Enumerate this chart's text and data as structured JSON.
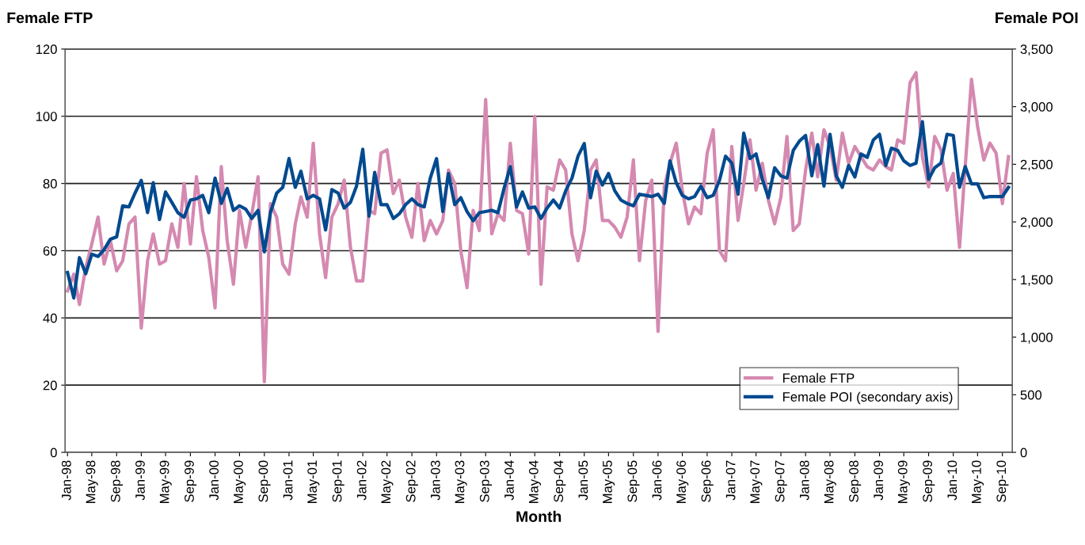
{
  "chart_data": {
    "type": "line",
    "xlabel": "Month",
    "ylabel": "Female FTP",
    "y2label": "Female POI",
    "x": [
      "1998-01",
      "1998-02",
      "1998-03",
      "1998-04",
      "1998-05",
      "1998-06",
      "1998-07",
      "1998-08",
      "1998-09",
      "1998-10",
      "1998-11",
      "1998-12",
      "1999-01",
      "1999-02",
      "1999-03",
      "1999-04",
      "1999-05",
      "1999-06",
      "1999-07",
      "1999-08",
      "1999-09",
      "1999-10",
      "1999-11",
      "1999-12",
      "2000-01",
      "2000-02",
      "2000-03",
      "2000-04",
      "2000-05",
      "2000-06",
      "2000-07",
      "2000-08",
      "2000-09",
      "2000-10",
      "2000-11",
      "2000-12",
      "2001-01",
      "2001-02",
      "2001-03",
      "2001-04",
      "2001-05",
      "2001-06",
      "2001-07",
      "2001-08",
      "2001-09",
      "2001-10",
      "2001-11",
      "2001-12",
      "2002-01",
      "2002-02",
      "2002-03",
      "2002-04",
      "2002-05",
      "2002-06",
      "2002-07",
      "2002-08",
      "2002-09",
      "2002-10",
      "2002-11",
      "2002-12",
      "2003-01",
      "2003-02",
      "2003-03",
      "2003-04",
      "2003-05",
      "2003-06",
      "2003-07",
      "2003-08",
      "2003-09",
      "2003-10",
      "2003-11",
      "2003-12",
      "2004-01",
      "2004-02",
      "2004-03",
      "2004-04",
      "2004-05",
      "2004-06",
      "2004-07",
      "2004-08",
      "2004-09",
      "2004-10",
      "2004-11",
      "2004-12",
      "2005-01",
      "2005-02",
      "2005-03",
      "2005-04",
      "2005-05",
      "2005-06",
      "2005-07",
      "2005-08",
      "2005-09",
      "2005-10",
      "2005-11",
      "2005-12",
      "2006-01",
      "2006-02",
      "2006-03",
      "2006-04",
      "2006-05",
      "2006-06",
      "2006-07",
      "2006-08",
      "2006-09",
      "2006-10",
      "2006-11",
      "2006-12",
      "2007-01",
      "2007-02",
      "2007-03",
      "2007-04",
      "2007-05",
      "2007-06",
      "2007-07",
      "2007-08",
      "2007-09",
      "2007-10",
      "2007-11",
      "2007-12",
      "2008-01",
      "2008-02",
      "2008-03",
      "2008-04",
      "2008-05",
      "2008-06",
      "2008-07",
      "2008-08",
      "2008-09",
      "2008-10",
      "2008-11",
      "2008-12",
      "2009-01",
      "2009-02",
      "2009-03",
      "2009-04",
      "2009-05",
      "2009-06",
      "2009-07",
      "2009-08",
      "2009-09",
      "2009-10",
      "2009-11",
      "2009-12",
      "2010-01",
      "2010-02",
      "2010-03",
      "2010-04",
      "2010-05",
      "2010-06",
      "2010-07",
      "2010-08",
      "2010-09",
      "2010-10"
    ],
    "xlim": [
      "1997-12-20",
      "2010-10-20"
    ],
    "xticks": [
      {
        "value": "1998-01",
        "label": "Jan-98"
      },
      {
        "value": "1998-05",
        "label": "May-98"
      },
      {
        "value": "1998-09",
        "label": "Sep-98"
      },
      {
        "value": "1999-01",
        "label": "Jan-99"
      },
      {
        "value": "1999-05",
        "label": "May-99"
      },
      {
        "value": "1999-09",
        "label": "Sep-99"
      },
      {
        "value": "2000-01",
        "label": "Jan-00"
      },
      {
        "value": "2000-05",
        "label": "May-00"
      },
      {
        "value": "2000-09",
        "label": "Sep-00"
      },
      {
        "value": "2001-01",
        "label": "Jan-01"
      },
      {
        "value": "2001-05",
        "label": "May-01"
      },
      {
        "value": "2001-09",
        "label": "Sep-01"
      },
      {
        "value": "2002-01",
        "label": "Jan-02"
      },
      {
        "value": "2002-05",
        "label": "May-02"
      },
      {
        "value": "2002-09",
        "label": "Sep-02"
      },
      {
        "value": "2003-01",
        "label": "Jan-03"
      },
      {
        "value": "2003-05",
        "label": "May-03"
      },
      {
        "value": "2003-09",
        "label": "Sep-03"
      },
      {
        "value": "2004-01",
        "label": "Jan-04"
      },
      {
        "value": "2004-05",
        "label": "May-04"
      },
      {
        "value": "2004-09",
        "label": "Sep-04"
      },
      {
        "value": "2005-01",
        "label": "Jan-05"
      },
      {
        "value": "2005-05",
        "label": "May-05"
      },
      {
        "value": "2005-09",
        "label": "Sep-05"
      },
      {
        "value": "2006-01",
        "label": "Jan-06"
      },
      {
        "value": "2006-05",
        "label": "May-06"
      },
      {
        "value": "2006-09",
        "label": "Sep-06"
      },
      {
        "value": "2007-01",
        "label": "Jan-07"
      },
      {
        "value": "2007-05",
        "label": "May-07"
      },
      {
        "value": "2007-09",
        "label": "Sep-07"
      },
      {
        "value": "2008-01",
        "label": "Jan-08"
      },
      {
        "value": "2008-05",
        "label": "May-08"
      },
      {
        "value": "2008-09",
        "label": "Sep-08"
      },
      {
        "value": "2009-01",
        "label": "Jan-09"
      },
      {
        "value": "2009-05",
        "label": "May-09"
      },
      {
        "value": "2009-09",
        "label": "Sep-09"
      },
      {
        "value": "2010-01",
        "label": "Jan-10"
      },
      {
        "value": "2010-05",
        "label": "May-10"
      },
      {
        "value": "2010-09",
        "label": "Sep-10"
      }
    ],
    "ylim": [
      0,
      120
    ],
    "yticks": [
      0,
      20,
      40,
      60,
      80,
      100,
      120
    ],
    "y2lim": [
      0,
      3500
    ],
    "y2ticks": [
      {
        "value": 0,
        "label": "0"
      },
      {
        "value": 500,
        "label": "500"
      },
      {
        "value": 1000,
        "label": "1,000"
      },
      {
        "value": 1500,
        "label": "1,500"
      },
      {
        "value": 2000,
        "label": "2,000"
      },
      {
        "value": 2500,
        "label": "2,500"
      },
      {
        "value": 3000,
        "label": "3,000"
      },
      {
        "value": 3500,
        "label": "3,500"
      }
    ],
    "grid": "y",
    "legend": "bottom right",
    "marker": "none",
    "line_style": "solid",
    "series": [
      {
        "name": "Female FTP",
        "color": "#d589b0",
        "values": [
          48,
          53,
          44,
          55,
          62,
          70,
          56,
          63,
          54,
          57,
          68,
          70,
          37,
          57,
          65,
          56,
          57,
          68,
          61,
          80,
          62,
          82,
          66,
          58,
          43,
          85,
          63,
          50,
          72,
          61,
          71,
          82,
          21,
          74,
          70,
          56,
          53,
          68,
          76,
          70,
          92,
          65,
          52,
          70,
          74,
          81,
          61,
          51,
          51,
          72,
          71,
          89,
          90,
          77,
          81,
          70,
          64,
          80,
          63,
          69,
          65,
          69,
          84,
          80,
          60,
          49,
          72,
          66,
          105,
          65,
          71,
          69,
          92,
          72,
          71,
          59,
          100,
          50,
          79,
          78,
          87,
          84,
          65,
          57,
          66,
          84,
          87,
          69,
          69,
          67,
          64,
          70,
          87,
          57,
          75,
          81,
          36,
          79,
          86,
          92,
          78,
          68,
          73,
          71,
          89,
          96,
          60,
          57,
          91,
          69,
          80,
          93,
          78,
          86,
          75,
          68,
          76,
          94,
          66,
          68,
          84,
          95,
          82,
          96,
          91,
          81,
          95,
          86,
          91,
          88,
          85,
          84,
          87,
          85,
          84,
          93,
          92,
          110,
          113,
          88,
          79,
          94,
          90,
          78,
          83,
          61,
          85,
          111,
          97,
          87,
          92,
          89,
          74,
          88
        ]
      },
      {
        "name": "Female POI (secondary axis)",
        "color": "#004a8f",
        "axis": "y2",
        "values": [
          1560,
          1340,
          1690,
          1550,
          1720,
          1700,
          1760,
          1850,
          1870,
          2140,
          2130,
          2250,
          2360,
          2080,
          2340,
          2020,
          2260,
          2170,
          2080,
          2040,
          2190,
          2200,
          2230,
          2080,
          2380,
          2160,
          2290,
          2100,
          2140,
          2110,
          2030,
          2100,
          1740,
          2080,
          2250,
          2300,
          2550,
          2300,
          2440,
          2200,
          2230,
          2200,
          1930,
          2280,
          2250,
          2120,
          2170,
          2310,
          2630,
          2050,
          2430,
          2150,
          2150,
          2030,
          2070,
          2150,
          2200,
          2150,
          2130,
          2380,
          2550,
          2090,
          2420,
          2150,
          2210,
          2090,
          2010,
          2080,
          2090,
          2100,
          2080,
          2290,
          2480,
          2130,
          2260,
          2120,
          2130,
          2030,
          2120,
          2190,
          2120,
          2270,
          2380,
          2570,
          2680,
          2210,
          2440,
          2320,
          2420,
          2270,
          2190,
          2160,
          2140,
          2240,
          2230,
          2220,
          2240,
          2160,
          2530,
          2340,
          2230,
          2200,
          2220,
          2310,
          2210,
          2230,
          2360,
          2570,
          2510,
          2240,
          2770,
          2550,
          2590,
          2370,
          2210,
          2470,
          2400,
          2380,
          2620,
          2700,
          2750,
          2400,
          2670,
          2310,
          2760,
          2400,
          2300,
          2490,
          2390,
          2590,
          2560,
          2710,
          2760,
          2490,
          2640,
          2620,
          2530,
          2490,
          2510,
          2870,
          2370,
          2470,
          2510,
          2760,
          2750,
          2300,
          2480,
          2330,
          2330,
          2210,
          2220,
          2220,
          2220,
          2300
        ]
      }
    ]
  }
}
